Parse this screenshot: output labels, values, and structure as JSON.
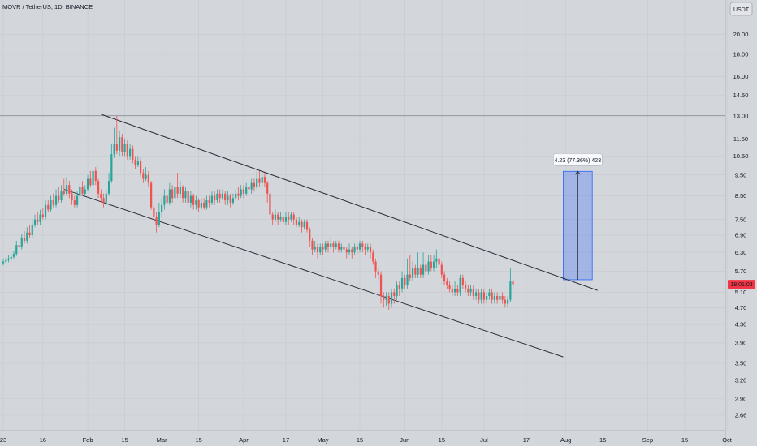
{
  "symbol_title": "MOVR / TetherUS, 1D, BINANCE",
  "currency_button": "USDT",
  "price_badge": "18:01:03",
  "measure_label": "4.23 (77.36%) 423",
  "colors": {
    "up": "#26a69a",
    "down": "#ef5350",
    "measure": "#2962ff",
    "price": "#f23645"
  },
  "chart_data": {
    "type": "candlestick",
    "title": "MOVR / TetherUS, 1D, BINANCE",
    "y_scale": "log",
    "ylim": [
      2.45,
      24.0
    ],
    "y_ticks": [
      "20.00",
      "18.00",
      "16.00",
      "14.50",
      "13.00",
      "11.50",
      "10.50",
      "9.50",
      "8.50",
      "7.50",
      "6.90",
      "6.30",
      "5.70",
      "5.10",
      "4.70",
      "4.30",
      "3.90",
      "3.50",
      "3.20",
      "2.90",
      "2.66"
    ],
    "y_tick_values": [
      20.0,
      18.0,
      16.0,
      14.5,
      13.0,
      11.5,
      10.5,
      9.5,
      8.5,
      7.5,
      6.9,
      6.3,
      5.7,
      5.1,
      4.7,
      4.3,
      3.9,
      3.5,
      3.2,
      2.9,
      2.66
    ],
    "x_ticks": [
      "23",
      "16",
      "Feb",
      "15",
      "Mar",
      "15",
      "Apr",
      "17",
      "May",
      "15",
      "Jun",
      "15",
      "Jul",
      "17",
      "Aug",
      "15",
      "Sep",
      "15",
      "Oct"
    ],
    "x_tick_days": [
      0,
      15,
      32,
      46,
      60,
      74,
      91,
      107,
      121,
      135,
      152,
      166,
      182,
      198,
      213,
      227,
      244,
      258,
      274
    ],
    "horizontal_lines": [
      13.0,
      4.62
    ],
    "channel_upper": [
      [
        37,
        13.1
      ],
      [
        225,
        5.15
      ]
    ],
    "channel_lower": [
      [
        23,
        8.8
      ],
      [
        212,
        3.62
      ]
    ],
    "measure": {
      "x_start": 212,
      "x_end": 223,
      "y_from": 5.45,
      "y_to": 9.68,
      "change": 4.23,
      "percent": 77.36,
      "bars": 423
    },
    "current_price": 5.32,
    "candles": [
      [
        0,
        5.95,
        6.0,
        6.1,
        5.88
      ],
      [
        1,
        6.0,
        6.05,
        6.15,
        5.92
      ],
      [
        2,
        6.05,
        6.1,
        6.2,
        5.98
      ],
      [
        3,
        6.1,
        6.15,
        6.25,
        6.02
      ],
      [
        4,
        6.15,
        6.25,
        6.35,
        6.08
      ],
      [
        5,
        6.25,
        6.55,
        6.7,
        6.18
      ],
      [
        6,
        6.55,
        6.5,
        6.75,
        6.35
      ],
      [
        7,
        6.5,
        6.8,
        6.95,
        6.4
      ],
      [
        8,
        6.8,
        6.7,
        7.05,
        6.6
      ],
      [
        9,
        6.7,
        7.0,
        7.2,
        6.6
      ],
      [
        10,
        7.0,
        6.9,
        7.3,
        6.8
      ],
      [
        11,
        6.9,
        7.3,
        7.5,
        6.8
      ],
      [
        12,
        7.3,
        7.5,
        7.7,
        7.2
      ],
      [
        13,
        7.5,
        7.4,
        7.8,
        7.3
      ],
      [
        14,
        7.4,
        7.7,
        7.9,
        7.3
      ],
      [
        15,
        7.7,
        7.6,
        7.95,
        7.5
      ],
      [
        16,
        7.6,
        8.1,
        8.3,
        7.5
      ],
      [
        17,
        8.1,
        7.9,
        8.3,
        7.8
      ],
      [
        18,
        7.9,
        8.3,
        8.5,
        7.8
      ],
      [
        19,
        8.3,
        8.1,
        8.6,
        8.0
      ],
      [
        20,
        8.1,
        8.5,
        8.8,
        8.0
      ],
      [
        21,
        8.5,
        8.3,
        8.9,
        8.2
      ],
      [
        22,
        8.3,
        8.7,
        9.0,
        8.2
      ],
      [
        23,
        8.7,
        8.6,
        9.3,
        8.5
      ],
      [
        24,
        8.6,
        9.0,
        9.4,
        8.5
      ],
      [
        25,
        9.0,
        8.6,
        9.2,
        8.4
      ],
      [
        26,
        8.6,
        8.3,
        8.8,
        8.1
      ],
      [
        27,
        8.3,
        8.1,
        8.5,
        8.0
      ],
      [
        28,
        8.1,
        8.5,
        8.7,
        8.0
      ],
      [
        29,
        8.5,
        8.9,
        9.1,
        8.4
      ],
      [
        30,
        8.9,
        8.6,
        9.2,
        8.5
      ],
      [
        31,
        8.6,
        8.8,
        9.0,
        8.5
      ],
      [
        32,
        8.8,
        9.3,
        9.5,
        8.7
      ],
      [
        33,
        9.3,
        9.0,
        9.7,
        8.9
      ],
      [
        34,
        9.0,
        9.7,
        10.6,
        8.9
      ],
      [
        35,
        9.7,
        9.2,
        9.9,
        9.0
      ],
      [
        36,
        9.2,
        8.6,
        9.3,
        8.4
      ],
      [
        37,
        8.6,
        8.4,
        8.8,
        8.2
      ],
      [
        38,
        8.4,
        8.2,
        8.6,
        8.0
      ],
      [
        39,
        8.2,
        8.6,
        8.8,
        8.1
      ],
      [
        40,
        8.6,
        9.2,
        9.6,
        8.5
      ],
      [
        41,
        9.2,
        10.6,
        11.2,
        9.1
      ],
      [
        42,
        10.6,
        11.2,
        12.2,
        10.4
      ],
      [
        43,
        11.2,
        10.8,
        13.0,
        10.6
      ],
      [
        44,
        10.8,
        11.6,
        12.0,
        10.5
      ],
      [
        45,
        11.6,
        10.7,
        11.8,
        10.5
      ],
      [
        46,
        10.7,
        11.2,
        11.5,
        10.5
      ],
      [
        47,
        11.2,
        10.5,
        11.4,
        10.3
      ],
      [
        48,
        10.5,
        10.9,
        11.2,
        10.3
      ],
      [
        49,
        10.9,
        10.3,
        11.1,
        10.1
      ],
      [
        50,
        10.3,
        10.0,
        10.5,
        9.8
      ],
      [
        51,
        10.0,
        10.2,
        10.5,
        9.9
      ],
      [
        52,
        10.2,
        9.6,
        10.4,
        9.4
      ],
      [
        53,
        9.6,
        9.3,
        9.8,
        9.1
      ],
      [
        54,
        9.3,
        9.5,
        9.9,
        9.2
      ],
      [
        55,
        9.5,
        9.1,
        9.7,
        8.9
      ],
      [
        56,
        9.1,
        8.0,
        9.2,
        7.9
      ],
      [
        57,
        8.0,
        7.6,
        8.2,
        7.4
      ],
      [
        58,
        7.6,
        7.3,
        7.8,
        7.0
      ],
      [
        59,
        7.3,
        7.8,
        8.2,
        7.2
      ],
      [
        60,
        7.8,
        8.1,
        8.4,
        7.6
      ],
      [
        61,
        8.1,
        8.5,
        8.8,
        7.9
      ],
      [
        62,
        8.5,
        8.2,
        8.7,
        8.0
      ],
      [
        63,
        8.2,
        8.8,
        9.1,
        8.1
      ],
      [
        64,
        8.8,
        8.4,
        9.0,
        8.2
      ],
      [
        65,
        8.4,
        8.9,
        9.2,
        8.3
      ],
      [
        66,
        8.9,
        8.6,
        9.6,
        8.4
      ],
      [
        67,
        8.6,
        8.9,
        9.2,
        8.4
      ],
      [
        68,
        8.9,
        8.4,
        9.0,
        8.2
      ],
      [
        69,
        8.4,
        8.7,
        8.9,
        8.2
      ],
      [
        70,
        8.7,
        8.2,
        8.8,
        8.0
      ],
      [
        71,
        8.2,
        8.5,
        8.7,
        8.0
      ],
      [
        72,
        8.5,
        8.1,
        8.6,
        7.9
      ],
      [
        73,
        8.1,
        8.3,
        8.5,
        7.9
      ],
      [
        74,
        8.3,
        8.0,
        8.4,
        7.8
      ],
      [
        75,
        8.0,
        8.2,
        8.4,
        7.9
      ],
      [
        76,
        8.2,
        8.0,
        8.4,
        7.9
      ],
      [
        77,
        8.0,
        8.3,
        8.5,
        7.9
      ],
      [
        78,
        8.3,
        8.2,
        8.5,
        8.0
      ],
      [
        79,
        8.2,
        8.5,
        8.7,
        8.1
      ],
      [
        80,
        8.5,
        8.3,
        8.7,
        8.1
      ],
      [
        81,
        8.3,
        8.6,
        8.8,
        8.2
      ],
      [
        82,
        8.6,
        8.4,
        8.8,
        8.2
      ],
      [
        83,
        8.4,
        8.6,
        8.8,
        8.3
      ],
      [
        84,
        8.6,
        8.3,
        8.7,
        8.1
      ],
      [
        85,
        8.3,
        8.5,
        8.7,
        8.1
      ],
      [
        86,
        8.5,
        8.2,
        8.6,
        8.0
      ],
      [
        87,
        8.2,
        8.4,
        8.6,
        8.1
      ],
      [
        88,
        8.4,
        8.6,
        8.8,
        8.3
      ],
      [
        89,
        8.6,
        8.5,
        8.9,
        8.3
      ],
      [
        90,
        8.5,
        8.8,
        9.0,
        8.4
      ],
      [
        91,
        8.8,
        8.6,
        9.0,
        8.4
      ],
      [
        92,
        8.6,
        8.9,
        9.1,
        8.5
      ],
      [
        93,
        8.9,
        8.8,
        9.2,
        8.6
      ],
      [
        94,
        8.8,
        9.1,
        9.3,
        8.6
      ],
      [
        95,
        9.1,
        8.9,
        9.3,
        8.7
      ],
      [
        96,
        8.9,
        9.3,
        9.7,
        8.8
      ],
      [
        97,
        9.3,
        9.1,
        9.7,
        8.9
      ],
      [
        98,
        9.1,
        9.4,
        9.6,
        8.9
      ],
      [
        99,
        9.4,
        9.1,
        9.6,
        8.9
      ],
      [
        100,
        9.1,
        8.6,
        9.2,
        8.2
      ],
      [
        101,
        8.6,
        7.7,
        8.7,
        7.5
      ],
      [
        102,
        7.7,
        7.5,
        7.8,
        7.3
      ],
      [
        103,
        7.5,
        7.7,
        7.9,
        7.4
      ],
      [
        104,
        7.7,
        7.5,
        7.8,
        7.3
      ],
      [
        105,
        7.5,
        7.6,
        7.8,
        7.4
      ],
      [
        106,
        7.6,
        7.4,
        7.7,
        7.3
      ],
      [
        107,
        7.4,
        7.6,
        7.8,
        7.3
      ],
      [
        108,
        7.6,
        7.5,
        7.8,
        7.3
      ],
      [
        109,
        7.5,
        7.7,
        7.8,
        7.4
      ],
      [
        110,
        7.7,
        7.5,
        7.8,
        7.3
      ],
      [
        111,
        7.5,
        7.3,
        7.6,
        7.2
      ],
      [
        112,
        7.3,
        7.4,
        7.6,
        7.2
      ],
      [
        113,
        7.4,
        7.2,
        7.5,
        7.0
      ],
      [
        114,
        7.2,
        7.4,
        7.5,
        7.1
      ],
      [
        115,
        7.4,
        7.1,
        7.5,
        7.0
      ],
      [
        116,
        7.1,
        6.7,
        7.2,
        6.5
      ],
      [
        117,
        6.7,
        6.4,
        6.8,
        6.2
      ],
      [
        118,
        6.4,
        6.5,
        6.7,
        6.3
      ],
      [
        119,
        6.5,
        6.3,
        6.6,
        6.1
      ],
      [
        120,
        6.3,
        6.5,
        6.6,
        6.2
      ],
      [
        121,
        6.5,
        6.4,
        6.6,
        6.2
      ],
      [
        122,
        6.4,
        6.6,
        6.7,
        6.3
      ],
      [
        123,
        6.6,
        6.5,
        6.7,
        6.3
      ],
      [
        124,
        6.5,
        6.6,
        6.8,
        6.4
      ],
      [
        125,
        6.6,
        6.5,
        6.7,
        6.3
      ],
      [
        126,
        6.5,
        6.6,
        6.7,
        6.4
      ],
      [
        127,
        6.6,
        6.4,
        6.7,
        6.3
      ],
      [
        128,
        6.4,
        6.5,
        6.6,
        6.3
      ],
      [
        129,
        6.5,
        6.4,
        6.6,
        6.2
      ],
      [
        130,
        6.4,
        6.3,
        6.5,
        6.1
      ],
      [
        131,
        6.3,
        6.4,
        6.6,
        6.2
      ],
      [
        132,
        6.4,
        6.3,
        6.5,
        6.1
      ],
      [
        133,
        6.3,
        6.5,
        6.6,
        6.2
      ],
      [
        134,
        6.5,
        6.4,
        6.6,
        6.2
      ],
      [
        135,
        6.4,
        6.6,
        6.7,
        6.3
      ],
      [
        136,
        6.6,
        6.5,
        6.7,
        6.3
      ],
      [
        137,
        6.5,
        6.4,
        6.6,
        6.2
      ],
      [
        138,
        6.4,
        6.5,
        6.6,
        6.3
      ],
      [
        139,
        6.5,
        6.3,
        6.6,
        6.1
      ],
      [
        140,
        6.3,
        6.0,
        6.4,
        5.9
      ],
      [
        141,
        6.0,
        5.7,
        6.1,
        5.5
      ],
      [
        142,
        5.7,
        5.6,
        5.8,
        5.4
      ],
      [
        143,
        5.6,
        5.0,
        5.7,
        4.8
      ],
      [
        144,
        5.0,
        4.9,
        5.1,
        4.7
      ],
      [
        145,
        4.9,
        5.0,
        5.1,
        4.75
      ],
      [
        146,
        5.0,
        4.8,
        5.1,
        4.65
      ],
      [
        147,
        4.8,
        5.1,
        5.2,
        4.7
      ],
      [
        148,
        5.1,
        5.0,
        5.2,
        4.8
      ],
      [
        149,
        5.0,
        5.3,
        5.4,
        4.9
      ],
      [
        150,
        5.3,
        5.2,
        5.4,
        5.0
      ],
      [
        151,
        5.2,
        5.5,
        5.7,
        5.1
      ],
      [
        152,
        5.5,
        5.3,
        5.6,
        5.2
      ],
      [
        153,
        5.3,
        5.6,
        6.1,
        5.2
      ],
      [
        154,
        5.6,
        5.5,
        6.2,
        5.4
      ],
      [
        155,
        5.5,
        5.8,
        6.0,
        5.4
      ],
      [
        156,
        5.8,
        5.6,
        5.9,
        5.5
      ],
      [
        157,
        5.6,
        5.8,
        6.3,
        5.5
      ],
      [
        158,
        5.8,
        5.6,
        5.9,
        5.5
      ],
      [
        159,
        5.6,
        5.9,
        6.3,
        5.5
      ],
      [
        160,
        5.9,
        5.7,
        6.1,
        5.6
      ],
      [
        161,
        5.7,
        6.0,
        6.2,
        5.6
      ],
      [
        162,
        6.0,
        5.8,
        6.2,
        5.7
      ],
      [
        163,
        5.8,
        6.0,
        6.2,
        5.7
      ],
      [
        164,
        6.0,
        6.1,
        6.4,
        5.8
      ],
      [
        165,
        6.1,
        5.9,
        6.9,
        5.8
      ],
      [
        166,
        5.9,
        5.6,
        6.0,
        5.5
      ],
      [
        167,
        5.6,
        5.4,
        5.7,
        5.3
      ],
      [
        168,
        5.4,
        5.3,
        5.5,
        5.2
      ],
      [
        169,
        5.3,
        5.2,
        5.4,
        5.1
      ],
      [
        170,
        5.2,
        5.1,
        5.3,
        5.0
      ],
      [
        171,
        5.1,
        5.2,
        5.4,
        5.0
      ],
      [
        172,
        5.2,
        5.1,
        5.3,
        5.0
      ],
      [
        173,
        5.1,
        5.5,
        5.6,
        5.0
      ],
      [
        174,
        5.5,
        5.3,
        5.6,
        5.2
      ],
      [
        175,
        5.3,
        5.2,
        5.4,
        5.1
      ],
      [
        176,
        5.2,
        5.1,
        5.3,
        5.0
      ],
      [
        177,
        5.1,
        5.2,
        5.3,
        5.0
      ],
      [
        178,
        5.2,
        5.0,
        5.3,
        4.9
      ],
      [
        179,
        5.0,
        5.1,
        5.2,
        4.9
      ],
      [
        180,
        5.1,
        4.9,
        5.2,
        4.8
      ],
      [
        181,
        4.9,
        5.1,
        5.2,
        4.8
      ],
      [
        182,
        5.1,
        4.9,
        5.2,
        4.8
      ],
      [
        183,
        4.9,
        5.0,
        5.1,
        4.8
      ],
      [
        184,
        5.0,
        5.1,
        5.2,
        4.9
      ],
      [
        185,
        5.1,
        4.9,
        5.2,
        4.8
      ],
      [
        186,
        4.9,
        5.0,
        5.1,
        4.8
      ],
      [
        187,
        5.0,
        4.9,
        5.1,
        4.8
      ],
      [
        188,
        4.9,
        5.0,
        5.1,
        4.8
      ],
      [
        189,
        5.0,
        4.9,
        5.1,
        4.8
      ],
      [
        190,
        4.9,
        4.8,
        5.0,
        4.7
      ],
      [
        191,
        4.8,
        4.9,
        5.0,
        4.7
      ],
      [
        192,
        4.9,
        5.4,
        5.8,
        4.85
      ],
      [
        193,
        5.4,
        5.32,
        5.5,
        5.2
      ]
    ]
  }
}
